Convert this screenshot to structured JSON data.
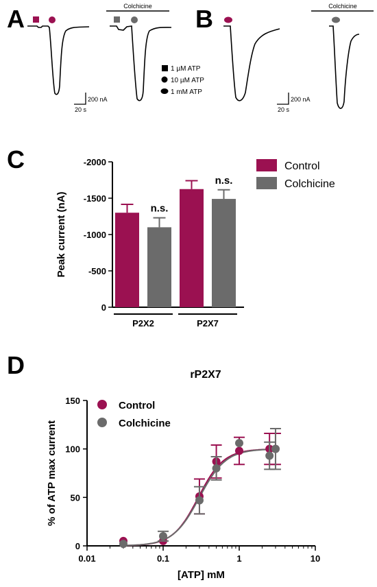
{
  "colors": {
    "control": "#9b1151",
    "colchicine": "#6b6b6b",
    "trace": "#000000"
  },
  "panel_a": {
    "letter": "A",
    "drug_label": "Colchicine",
    "legend": [
      {
        "marker": "square",
        "label": "1 µM ATP"
      },
      {
        "marker": "circle",
        "label": "10 µM ATP"
      },
      {
        "marker": "ellipse",
        "label": "1 mM ATP"
      }
    ],
    "scale_current": "200 nA",
    "scale_time": "20 s"
  },
  "panel_b": {
    "letter": "B",
    "drug_label": "Colchicine",
    "scale_current": "200 nA",
    "scale_time": "20 s"
  },
  "chart_data": [
    {
      "panel": "C",
      "type": "bar",
      "ylabel": "Peak current (nA)",
      "ylim": [
        0,
        -2000
      ],
      "yticks": [
        "-2000",
        "-1500",
        "-1000",
        "-500",
        "0"
      ],
      "categories": [
        "P2X2",
        "P2X7"
      ],
      "series": [
        {
          "name": "Control",
          "values": [
            -1300,
            -1625
          ],
          "errors": [
            115,
            115
          ]
        },
        {
          "name": "Colchicine",
          "values": [
            -1100,
            -1490
          ],
          "errors": [
            130,
            125
          ]
        }
      ],
      "annotations": [
        "n.s.",
        "n.s."
      ],
      "legend_position": "top-right"
    },
    {
      "panel": "D",
      "type": "scatter",
      "title": "rP2X7",
      "xlabel": "[ATP] mM",
      "ylabel": "% of ATP max current",
      "xscale": "log",
      "xlim": [
        0.01,
        10
      ],
      "ylim": [
        0,
        150
      ],
      "xticks": [
        "0.01",
        "0.1",
        "1",
        "10"
      ],
      "yticks": [
        "0",
        "50",
        "100",
        "150"
      ],
      "series": [
        {
          "name": "Control",
          "x": [
            0.03,
            0.1,
            0.3,
            0.5,
            1,
            2.5,
            3
          ],
          "y": [
            5,
            5,
            51,
            87,
            98,
            100,
            100
          ],
          "errors": [
            0,
            0,
            18,
            17,
            14,
            16,
            16
          ]
        },
        {
          "name": "Colchicine",
          "x": [
            0.03,
            0.1,
            0.3,
            0.5,
            1,
            2.5,
            3
          ],
          "y": [
            2,
            10,
            47,
            80,
            106,
            93,
            100
          ],
          "errors": [
            0,
            5,
            14,
            12,
            0,
            14,
            21
          ]
        }
      ],
      "legend_position": "top-left"
    }
  ]
}
